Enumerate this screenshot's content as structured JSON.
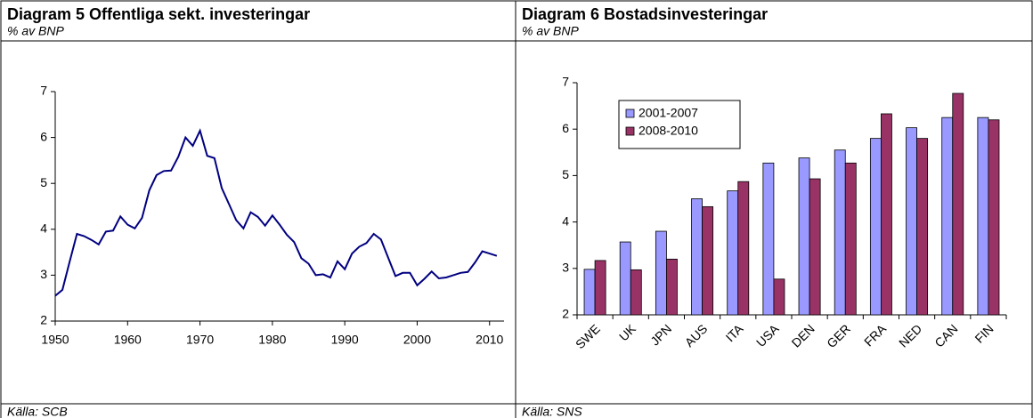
{
  "chart_data": [
    {
      "type": "line",
      "title": "Diagram 5 Offentliga sekt. investeringar",
      "subtitle": "% av BNP",
      "source": "Källa: SCB",
      "x": [
        1950,
        1951,
        1952,
        1953,
        1954,
        1955,
        1956,
        1957,
        1958,
        1959,
        1960,
        1961,
        1962,
        1963,
        1964,
        1965,
        1966,
        1967,
        1968,
        1969,
        1970,
        1971,
        1972,
        1973,
        1974,
        1975,
        1976,
        1977,
        1978,
        1979,
        1980,
        1981,
        1982,
        1983,
        1984,
        1985,
        1986,
        1987,
        1988,
        1989,
        1990,
        1991,
        1992,
        1993,
        1994,
        1995,
        1996,
        1997,
        1998,
        1999,
        2000,
        2001,
        2002,
        2003,
        2004,
        2005,
        2006,
        2007,
        2008,
        2009,
        2010,
        2011
      ],
      "values": [
        2.55,
        2.68,
        3.3,
        3.9,
        3.85,
        3.77,
        3.67,
        3.95,
        3.97,
        4.28,
        4.1,
        4.02,
        4.25,
        4.85,
        5.18,
        5.27,
        5.28,
        5.58,
        6.0,
        5.82,
        6.15,
        5.6,
        5.55,
        4.9,
        4.55,
        4.2,
        4.02,
        4.37,
        4.27,
        4.08,
        4.3,
        4.1,
        3.88,
        3.72,
        3.37,
        3.25,
        3.0,
        3.02,
        2.95,
        3.3,
        3.13,
        3.47,
        3.62,
        3.7,
        3.9,
        3.78,
        3.38,
        2.98,
        3.05,
        3.05,
        2.78,
        2.92,
        3.08,
        2.93,
        2.95,
        3.0,
        3.05,
        3.07,
        3.28,
        3.52,
        3.47,
        3.42
      ],
      "color": "#000080",
      "xlim": [
        1950,
        2012
      ],
      "xticks": [
        1950,
        1960,
        1970,
        1980,
        1990,
        2000,
        2010
      ],
      "ylim": [
        2,
        7
      ],
      "yticks": [
        2,
        3,
        4,
        5,
        6,
        7
      ]
    },
    {
      "type": "bar",
      "title": "Diagram 6 Bostadsinvesteringar",
      "subtitle": "% av BNP",
      "source": "Källa: SNS",
      "categories": [
        "SWE",
        "UK",
        "JPN",
        "AUS",
        "ITA",
        "USA",
        "DEN",
        "GER",
        "FRA",
        "NED",
        "CAN",
        "FIN"
      ],
      "series": [
        {
          "name": "2001-2007",
          "color": "#9999ff",
          "values": [
            2.98,
            3.57,
            3.8,
            4.5,
            4.67,
            5.27,
            5.38,
            5.55,
            5.8,
            6.03,
            6.25,
            6.25
          ]
        },
        {
          "name": "2008-2010",
          "color": "#993366",
          "values": [
            3.17,
            2.97,
            3.2,
            4.33,
            4.87,
            2.77,
            4.93,
            5.27,
            6.33,
            5.8,
            6.77,
            6.2
          ]
        }
      ],
      "ylim": [
        2,
        7
      ],
      "yticks": [
        2,
        3,
        4,
        5,
        6,
        7
      ]
    }
  ]
}
